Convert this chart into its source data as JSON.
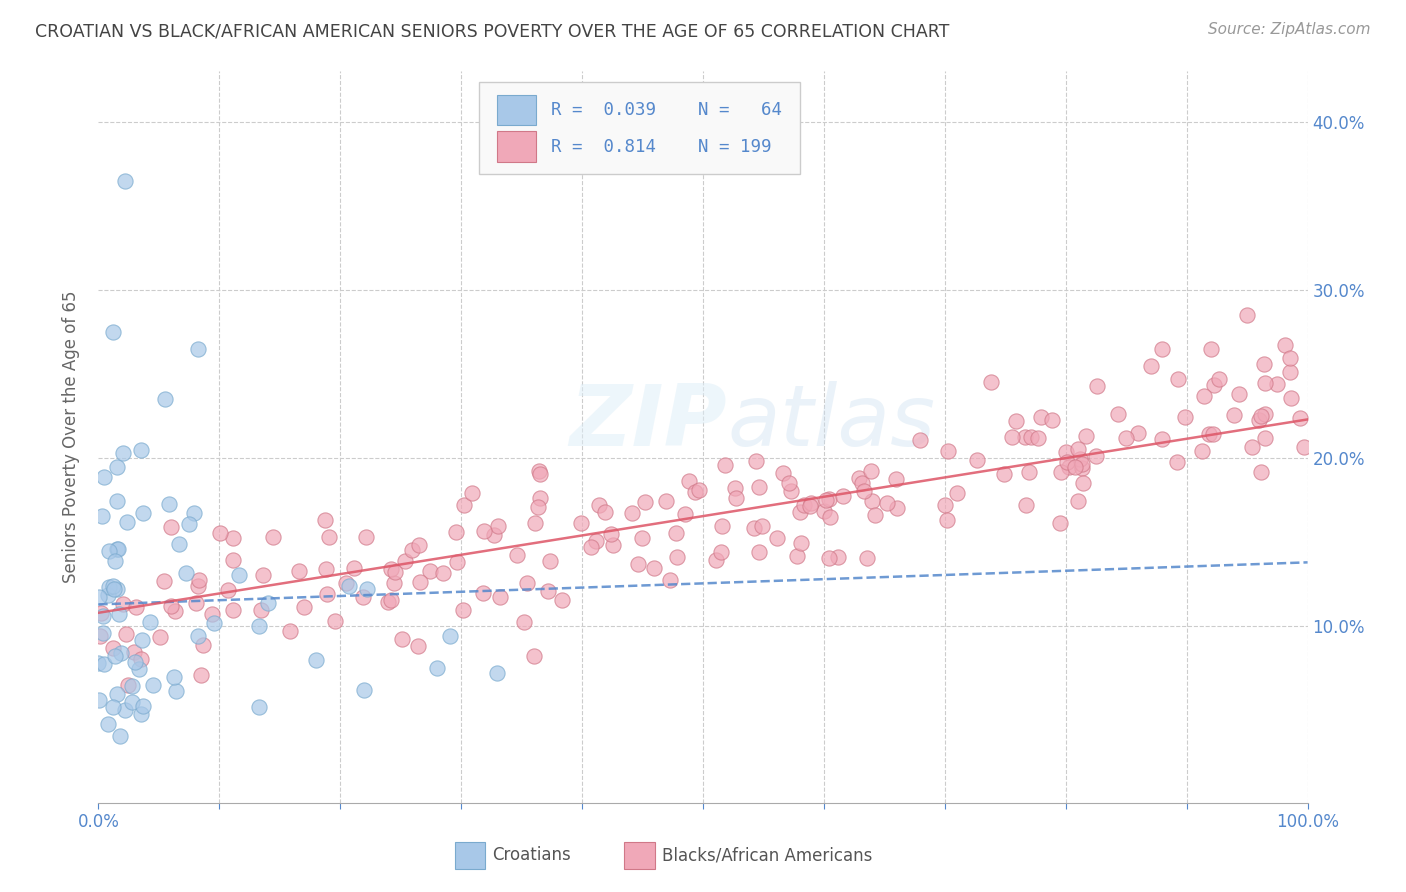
{
  "title": "CROATIAN VS BLACK/AFRICAN AMERICAN SENIORS POVERTY OVER THE AGE OF 65 CORRELATION CHART",
  "source": "Source: ZipAtlas.com",
  "ylabel": "Seniors Poverty Over the Age of 65",
  "xlim": [
    0,
    1.0
  ],
  "ylim": [
    -0.005,
    0.43
  ],
  "xticks": [
    0.0,
    0.1,
    0.2,
    0.3,
    0.4,
    0.5,
    0.6,
    0.7,
    0.8,
    0.9,
    1.0
  ],
  "yticks": [
    0.0,
    0.1,
    0.2,
    0.3,
    0.4
  ],
  "croatian_color": "#a8c8e8",
  "croatian_edge_color": "#7aaace",
  "black_color": "#f0a8b8",
  "black_edge_color": "#d07888",
  "croatian_line_color": "#5588cc",
  "black_line_color": "#dd5566",
  "grid_color": "#cccccc",
  "R_croatian": 0.039,
  "N_croatian": 64,
  "R_black": 0.814,
  "N_black": 199,
  "title_color": "#444444",
  "tick_label_color": "#5588cc",
  "watermark_color": "#ddeeff"
}
